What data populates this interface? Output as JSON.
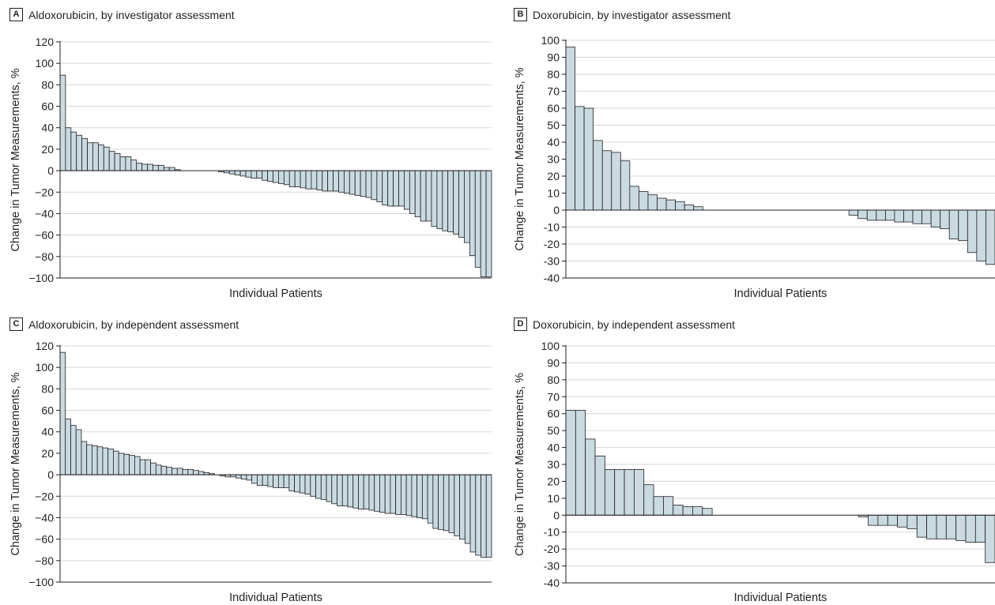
{
  "chart_data": [
    {
      "panel": "A",
      "type": "bar",
      "title": "Aldoxorubicin, by investigator assessment",
      "xlabel": "Individual Patients",
      "ylabel": "Change in Tumor Measurements, %",
      "ylim": [
        -100,
        120
      ],
      "yticks": [
        120,
        100,
        80,
        60,
        40,
        20,
        0,
        -20,
        -40,
        -60,
        -80,
        -100
      ],
      "ytick_labels": [
        "120",
        "100",
        "80",
        "60",
        "40",
        "20",
        "0",
        "−20",
        "−40",
        "−60",
        "−80",
        "−100"
      ],
      "grid": true,
      "values": [
        89,
        40,
        36,
        33,
        30,
        26,
        26,
        24,
        22,
        18,
        16,
        13,
        13,
        10,
        7,
        6,
        6,
        5,
        5,
        3,
        3,
        1,
        0,
        0,
        0,
        0,
        0,
        0,
        0,
        -1,
        -2,
        -3,
        -4,
        -5,
        -6,
        -7,
        -7,
        -9,
        -10,
        -11,
        -12,
        -13,
        -15,
        -15,
        -16,
        -17,
        -17,
        -18,
        -19,
        -19,
        -19,
        -20,
        -21,
        -22,
        -23,
        -24,
        -25,
        -27,
        -29,
        -32,
        -33,
        -33,
        -33,
        -36,
        -40,
        -43,
        -47,
        -47,
        -52,
        -54,
        -56,
        -57,
        -59,
        -62,
        -67,
        -79,
        -90,
        -99,
        -99
      ]
    },
    {
      "panel": "B",
      "type": "bar",
      "title": "Doxorubicin, by investigator assessment",
      "xlabel": "Individual Patients",
      "ylabel": "Change in Tumor Measurements, %",
      "ylim": [
        -40,
        100
      ],
      "yticks": [
        100,
        90,
        80,
        70,
        60,
        50,
        40,
        30,
        20,
        10,
        0,
        -10,
        -20,
        -30,
        -40
      ],
      "ytick_labels": [
        "100",
        "90",
        "80",
        "70",
        "60",
        "50",
        "40",
        "30",
        "20",
        "10",
        "0",
        "-10",
        "-20",
        "-30",
        "-40"
      ],
      "grid": true,
      "values": [
        96,
        61,
        60,
        41,
        35,
        34,
        29,
        14,
        11,
        9,
        7,
        6,
        5,
        3,
        2,
        0,
        0,
        0,
        0,
        0,
        0,
        0,
        0,
        0,
        0,
        0,
        0,
        0,
        0,
        0,
        0,
        -3,
        -5,
        -6,
        -6,
        -6,
        -7,
        -7,
        -8,
        -8,
        -10,
        -11,
        -17,
        -18,
        -25,
        -30,
        -32
      ]
    },
    {
      "panel": "C",
      "type": "bar",
      "title": "Aldoxorubicin, by independent assessment",
      "xlabel": "Individual Patients",
      "ylabel": "Change in Tumor Measurements, %",
      "ylim": [
        -100,
        120
      ],
      "yticks": [
        120,
        100,
        80,
        60,
        40,
        20,
        0,
        -20,
        -40,
        -60,
        -80,
        -100
      ],
      "ytick_labels": [
        "120",
        "100",
        "80",
        "60",
        "40",
        "20",
        "0",
        "−20",
        "−40",
        "−60",
        "−80",
        "−100"
      ],
      "grid": true,
      "values": [
        114,
        52,
        46,
        42,
        31,
        28,
        27,
        26,
        25,
        24,
        22,
        20,
        19,
        18,
        17,
        14,
        14,
        11,
        9,
        8,
        7,
        6,
        6,
        5,
        5,
        4,
        3,
        2,
        1,
        0,
        -1,
        -2,
        -2,
        -3,
        -4,
        -5,
        -8,
        -10,
        -10,
        -11,
        -12,
        -12,
        -12,
        -15,
        -16,
        -17,
        -18,
        -20,
        -22,
        -23,
        -25,
        -27,
        -29,
        -29,
        -30,
        -31,
        -32,
        -32,
        -33,
        -34,
        -35,
        -36,
        -36,
        -37,
        -37,
        -38,
        -39,
        -40,
        -41,
        -45,
        -50,
        -51,
        -52,
        -54,
        -57,
        -60,
        -64,
        -72,
        -75,
        -77,
        -77
      ]
    },
    {
      "panel": "D",
      "type": "bar",
      "title": "Doxorubicin, by independent assessment",
      "xlabel": "Individual Patients",
      "ylabel": "Change in Tumor Measurements, %",
      "ylim": [
        -40,
        100
      ],
      "yticks": [
        100,
        90,
        80,
        70,
        60,
        50,
        40,
        30,
        20,
        10,
        0,
        -10,
        -20,
        -30,
        -40
      ],
      "ytick_labels": [
        "100",
        "90",
        "80",
        "70",
        "60",
        "50",
        "40",
        "30",
        "20",
        "10",
        "0",
        "-10",
        "-20",
        "-30",
        "-40"
      ],
      "grid": true,
      "values": [
        62,
        62,
        45,
        35,
        27,
        27,
        27,
        27,
        18,
        11,
        11,
        6,
        5,
        5,
        4,
        0,
        0,
        0,
        0,
        0,
        0,
        0,
        0,
        0,
        0,
        0,
        0,
        0,
        0,
        0,
        -1,
        -6,
        -6,
        -6,
        -7,
        -8,
        -13,
        -14,
        -14,
        -14,
        -15,
        -16,
        -16,
        -28
      ]
    }
  ],
  "style": {
    "bar_fill": "#c9dae1",
    "bar_stroke": "#231f20",
    "grid_color": "#d7d7d7",
    "axis_color": "#231f20"
  }
}
